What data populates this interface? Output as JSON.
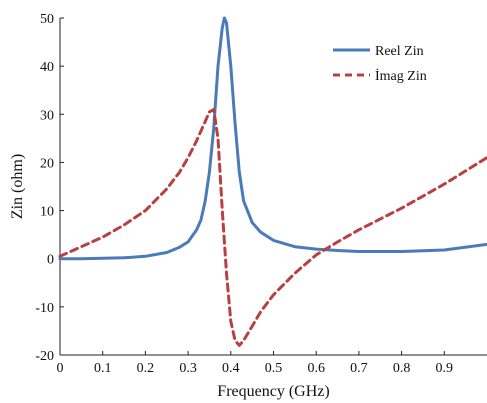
{
  "chart_data": {
    "type": "line",
    "title": "",
    "xlabel": "Frequency (GHz)",
    "ylabel": "Zin (ohm)",
    "xlim": [
      0,
      1.0
    ],
    "ylim": [
      -20,
      50
    ],
    "x_ticks": [
      0,
      0.1,
      0.2,
      0.3,
      0.4,
      0.5,
      0.6,
      0.7,
      0.8,
      0.9
    ],
    "x_tick_labels": [
      "0",
      "0.1",
      "0.2",
      "0.3",
      "0.4",
      "0.5",
      "0.6",
      "0.7",
      "0.8",
      "0.9"
    ],
    "y_ticks": [
      -20,
      -10,
      0,
      10,
      20,
      30,
      40,
      50
    ],
    "y_tick_labels": [
      "-20",
      "-10",
      "0",
      "10",
      "20",
      "30",
      "40",
      "50"
    ],
    "grid": false,
    "legend_position": "top-right",
    "series": [
      {
        "name": "Reel Zin",
        "color": "#4a7ab8",
        "style": "solid",
        "x": [
          0,
          0.05,
          0.1,
          0.15,
          0.2,
          0.25,
          0.28,
          0.3,
          0.32,
          0.33,
          0.34,
          0.35,
          0.36,
          0.37,
          0.38,
          0.385,
          0.39,
          0.4,
          0.41,
          0.42,
          0.43,
          0.45,
          0.47,
          0.5,
          0.55,
          0.6,
          0.65,
          0.7,
          0.8,
          0.9,
          1.0
        ],
        "values": [
          0,
          0,
          0.1,
          0.2,
          0.5,
          1.3,
          2.4,
          3.5,
          6,
          8,
          12,
          18,
          27,
          40,
          48,
          50,
          49,
          40,
          28,
          18,
          12,
          7.5,
          5.5,
          3.8,
          2.5,
          2.0,
          1.7,
          1.5,
          1.5,
          1.8,
          3.0
        ]
      },
      {
        "name": "İmag Zin",
        "color": "#b84040",
        "style": "dashed",
        "x": [
          0,
          0.05,
          0.1,
          0.15,
          0.2,
          0.25,
          0.28,
          0.3,
          0.32,
          0.34,
          0.35,
          0.36,
          0.37,
          0.38,
          0.39,
          0.4,
          0.41,
          0.42,
          0.43,
          0.45,
          0.47,
          0.5,
          0.55,
          0.6,
          0.65,
          0.7,
          0.8,
          0.9,
          1.0
        ],
        "values": [
          0.5,
          2.5,
          4.5,
          7,
          10,
          14.5,
          18,
          21,
          24.5,
          28.5,
          30.5,
          31,
          25,
          10,
          -3,
          -13,
          -17,
          -18,
          -17,
          -14,
          -11,
          -7.5,
          -3,
          0.8,
          3.5,
          6,
          10.5,
          15.5,
          21
        ]
      }
    ]
  }
}
